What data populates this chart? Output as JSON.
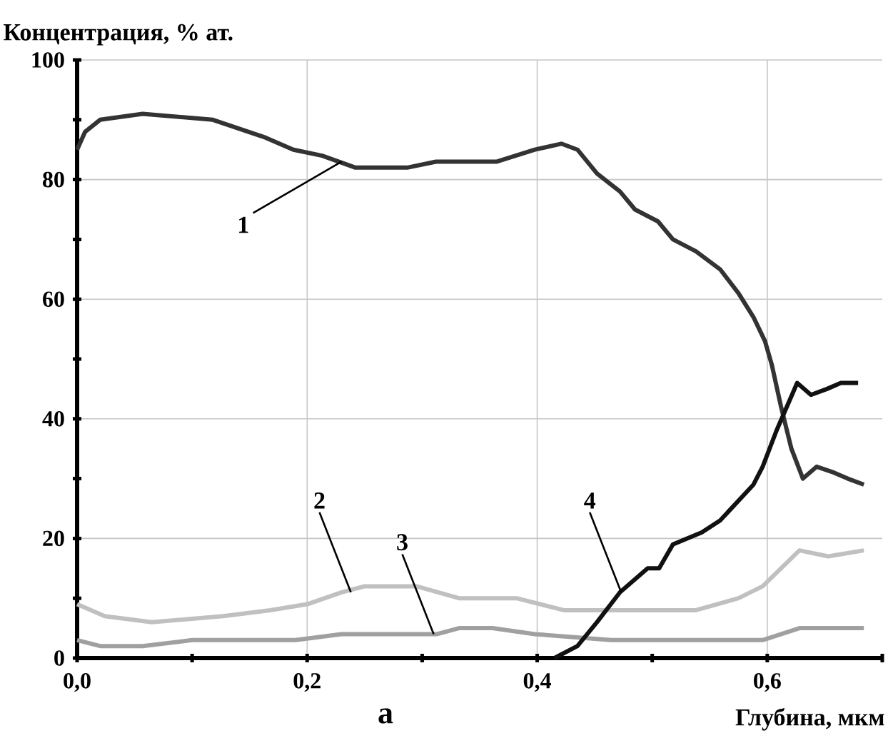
{
  "chart_data": {
    "type": "line",
    "xlabel": "Глубина, мкм",
    "ylabel": "Концентрация, % ат.",
    "xlim": [
      0,
      0.7
    ],
    "ylim": [
      0,
      100
    ],
    "xticks": [
      {
        "value": 0,
        "label": "0,0"
      },
      {
        "value": 0.1,
        "label": null
      },
      {
        "value": 0.2,
        "label": "0,2"
      },
      {
        "value": 0.3,
        "label": null
      },
      {
        "value": 0.4,
        "label": "0,4"
      },
      {
        "value": 0.5,
        "label": null
      },
      {
        "value": 0.6,
        "label": "0,6"
      },
      {
        "value": 0.7,
        "label": null
      }
    ],
    "yticks": [
      0,
      {
        "value": 10,
        "label": null
      },
      20,
      {
        "value": 30,
        "label": null
      },
      40,
      {
        "value": 50,
        "label": null
      },
      60,
      {
        "value": 70,
        "label": null
      },
      80,
      {
        "value": 90,
        "label": null
      },
      100
    ],
    "grid": true,
    "series": [
      {
        "color": "#333333",
        "x": [
          0,
          0.007,
          0.02,
          0.057,
          0.118,
          0.164,
          0.188,
          0.213,
          0.242,
          0.287,
          0.312,
          0.365,
          0.398,
          0.421,
          0.435,
          0.452,
          0.472,
          0.485,
          0.505,
          0.518,
          0.538,
          0.559,
          0.575,
          0.588,
          0.598,
          0.604,
          0.612,
          0.621,
          0.631,
          0.643,
          0.658,
          0.67,
          0.684
        ],
        "values": [
          85,
          88,
          90,
          91,
          90,
          87,
          85,
          84,
          82,
          82,
          83,
          83,
          85,
          86,
          85,
          81,
          78,
          75,
          73,
          70,
          68,
          65,
          61,
          57,
          53,
          49,
          42,
          35,
          30,
          32,
          31,
          30,
          29
        ]
      },
      {
        "color": "#c0c0c0",
        "x": [
          0,
          0.024,
          0.065,
          0.127,
          0.168,
          0.2,
          0.23,
          0.25,
          0.295,
          0.332,
          0.382,
          0.423,
          0.497,
          0.538,
          0.575,
          0.596,
          0.628,
          0.653,
          0.684
        ],
        "values": [
          9,
          7,
          6,
          7,
          8,
          9,
          11,
          12,
          12,
          10,
          10,
          8,
          8,
          8,
          10,
          12,
          18,
          17,
          18
        ]
      },
      {
        "color": "#a0a0a0",
        "x": [
          0,
          0.02,
          0.057,
          0.1,
          0.149,
          0.19,
          0.23,
          0.313,
          0.332,
          0.361,
          0.398,
          0.464,
          0.526,
          0.559,
          0.596,
          0.628,
          0.684
        ],
        "values": [
          3,
          2,
          2,
          3,
          3,
          3,
          4,
          4,
          5,
          5,
          4,
          3,
          3,
          3,
          3,
          5,
          5
        ]
      },
      {
        "color": "#111111",
        "x": [
          0.415,
          0.435,
          0.452,
          0.472,
          0.496,
          0.506,
          0.518,
          0.543,
          0.559,
          0.588,
          0.596,
          0.608,
          0.626,
          0.638,
          0.652,
          0.664,
          0.679
        ],
        "values": [
          0,
          2,
          6,
          11,
          15,
          15,
          19,
          21,
          23,
          29,
          32,
          38,
          46,
          44,
          45,
          46,
          46
        ]
      }
    ],
    "annotations": [
      {
        "text": "1",
        "x": 0.23,
        "y": 83
      },
      {
        "text": "2",
        "x": 0.238,
        "y": 11
      },
      {
        "text": "3",
        "x": 0.31,
        "y": 4
      },
      {
        "text": "4",
        "x": 0.473,
        "y": 11
      },
      "а"
    ]
  }
}
